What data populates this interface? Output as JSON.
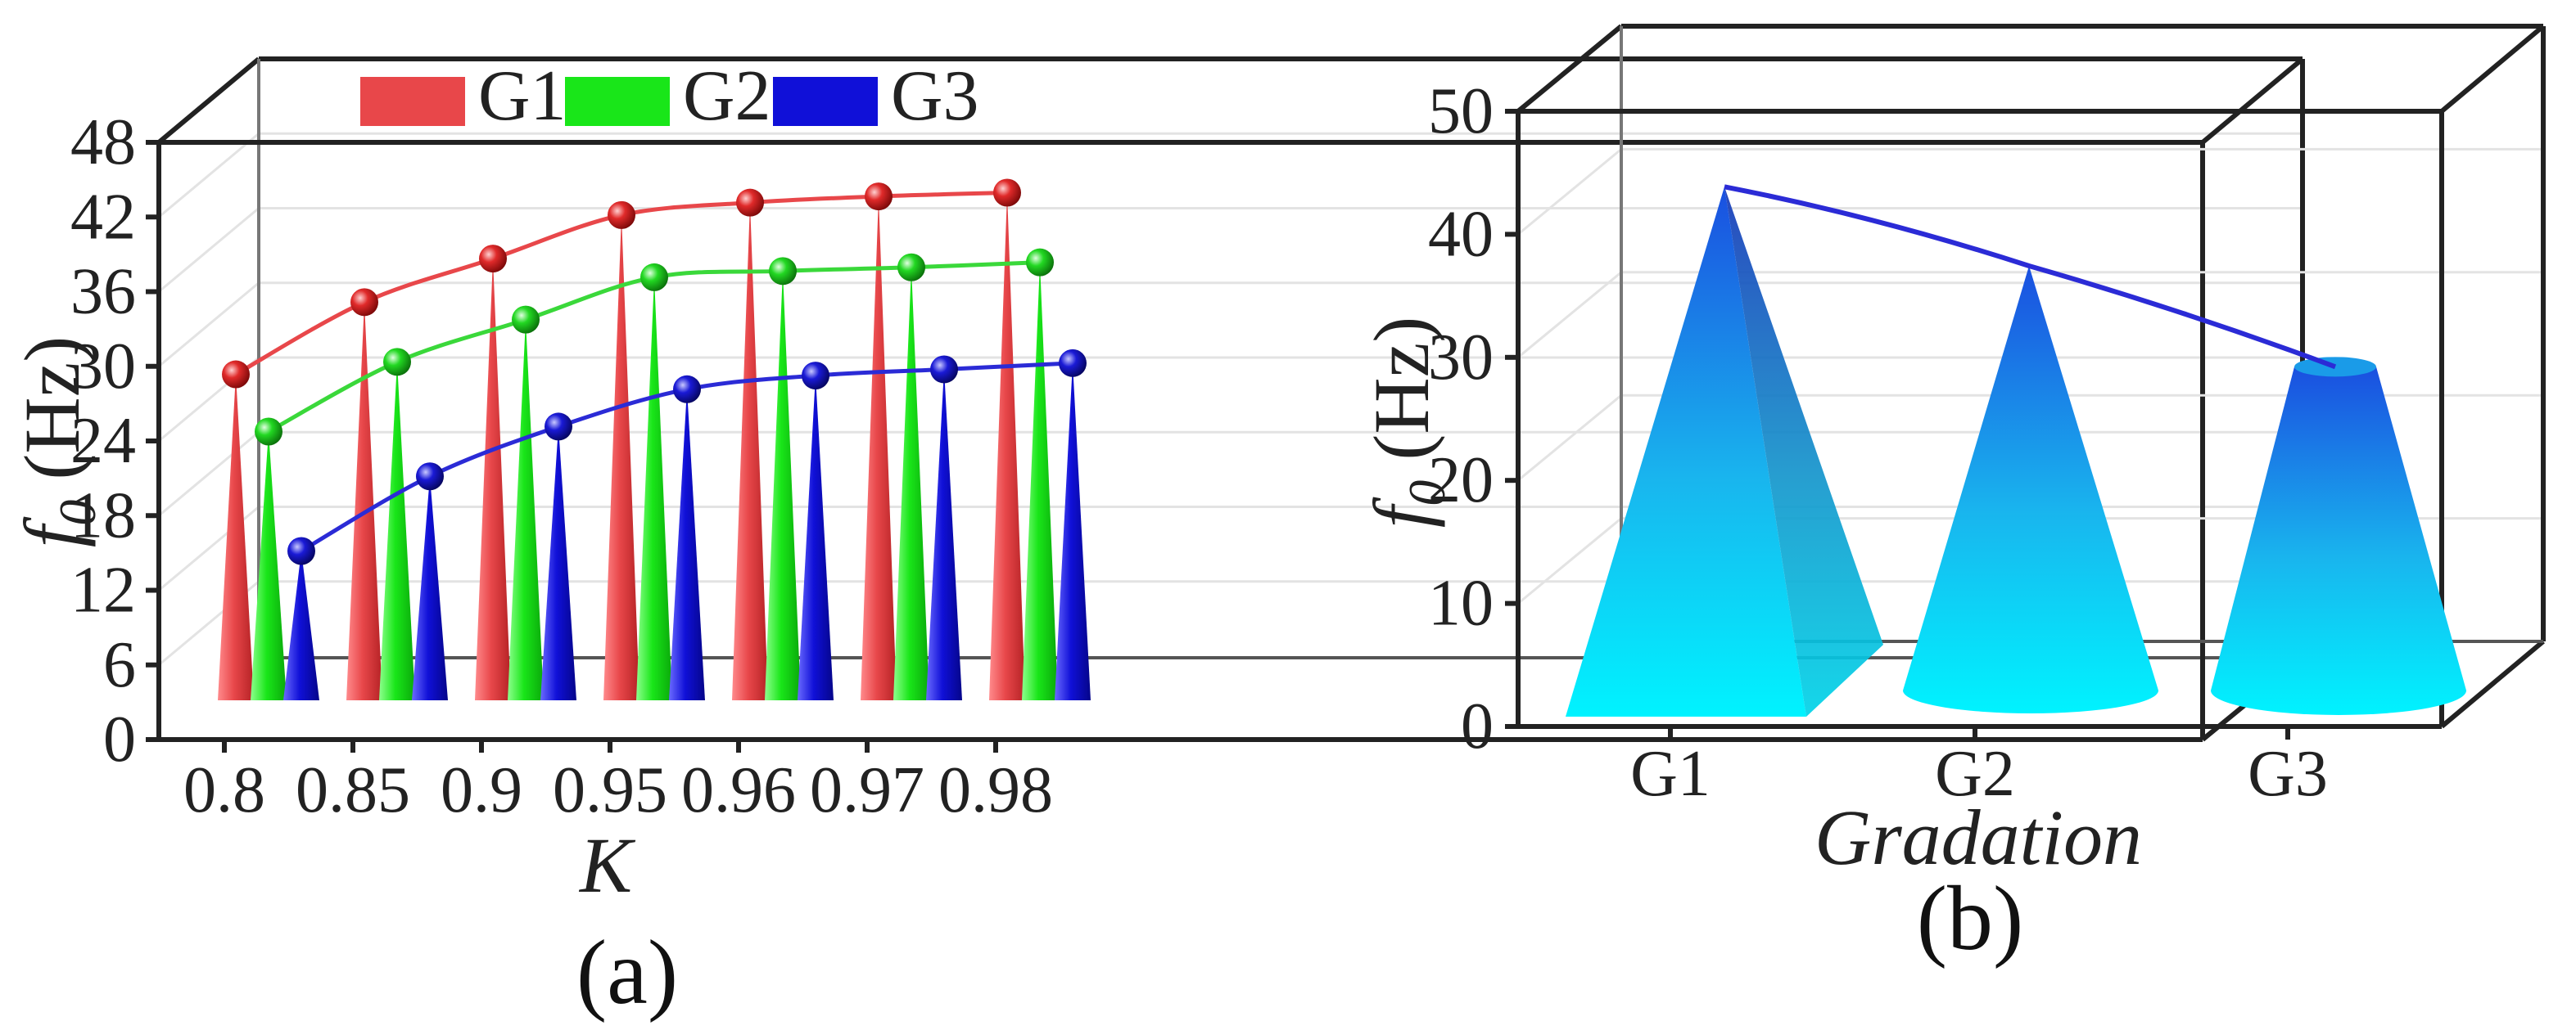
{
  "chart_data": [
    {
      "panel": "(a)",
      "type": "bar",
      "style": "3d-spike-with-spheres-and-lines",
      "xlabel": "K",
      "ylabel_main": "f",
      "ylabel_sub": "0",
      "ylabel_unit": " (Hz)",
      "ylim": [
        0,
        48
      ],
      "yticks": [
        "0",
        "6",
        "12",
        "18",
        "24",
        "30",
        "36",
        "42",
        "48"
      ],
      "categories": [
        "0.8",
        "0.85",
        "0.9",
        "0.95",
        "0.96",
        "0.97",
        "0.98"
      ],
      "series": [
        {
          "name": "G1",
          "color": "#e8474a",
          "values": [
            29.2,
            35.0,
            38.5,
            42.0,
            43.0,
            43.5,
            43.8
          ]
        },
        {
          "name": "G2",
          "color": "#19e619",
          "values": [
            24.6,
            30.2,
            33.6,
            37.0,
            37.5,
            37.8,
            38.2
          ]
        },
        {
          "name": "G3",
          "color": "#1010d8",
          "values": [
            15.0,
            21.0,
            25.0,
            28.0,
            29.1,
            29.6,
            30.1
          ]
        }
      ],
      "legend": "top"
    },
    {
      "panel": "(b)",
      "type": "bar",
      "style": "3d-cone",
      "xlabel": "Gradation",
      "ylabel_main": "f",
      "ylabel_sub": "0",
      "ylabel_unit": " (Hz)",
      "ylim": [
        0,
        50
      ],
      "yticks": [
        "0",
        "10",
        "20",
        "30",
        "40",
        "50"
      ],
      "categories": [
        "G1",
        "G2",
        "G3"
      ],
      "values": [
        43.2,
        36.9,
        29.5
      ],
      "shapes": [
        "pyramid",
        "cone",
        "frustum"
      ],
      "gradient_top": "#1a4fe0",
      "gradient_bottom": "#00f0ff",
      "line_color": "#2b2bd6"
    }
  ]
}
